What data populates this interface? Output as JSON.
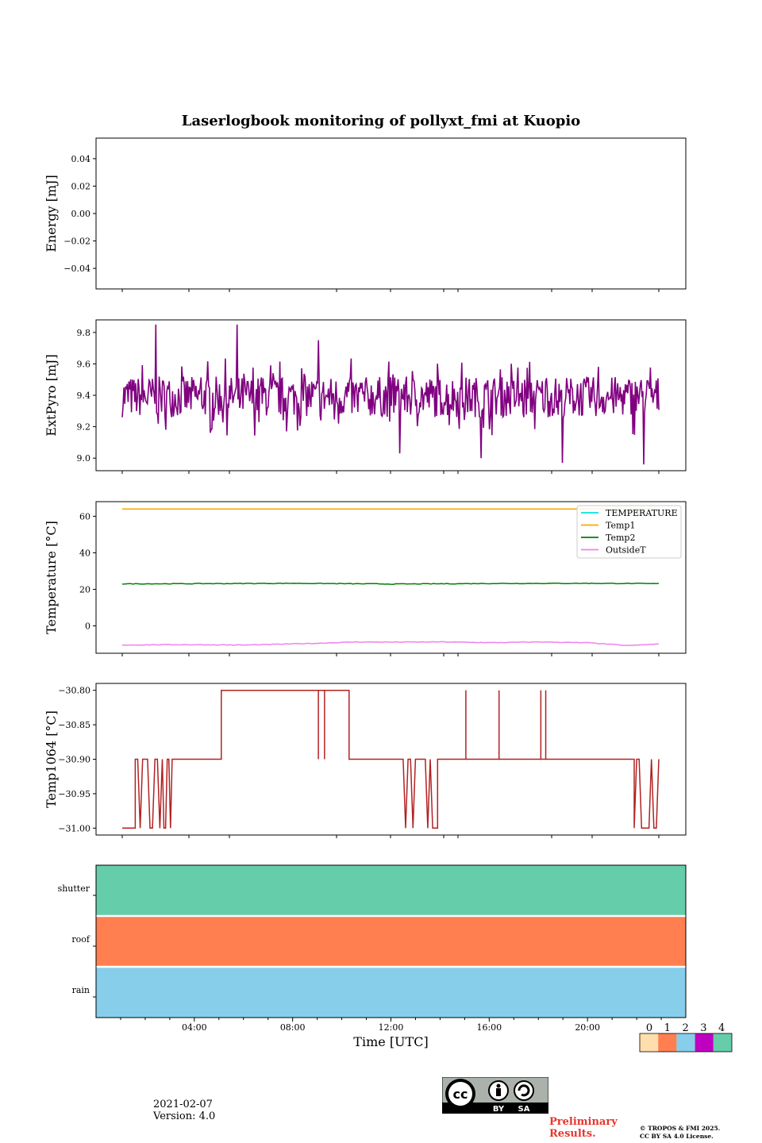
{
  "title": "Laserlogbook monitoring of pollyxt_fmi at Kuopio",
  "chart_data": [
    {
      "type": "line",
      "name": "energy",
      "ylabel": "Energy [mJ]",
      "ylim": [
        -0.055,
        0.055
      ],
      "yticks": [
        0.04,
        0.02,
        0.0,
        -0.02,
        -0.04
      ],
      "yticklabels": [
        "0.04",
        "0.02",
        "0.00",
        "−0.02",
        "−0.04"
      ],
      "series": []
    },
    {
      "type": "line",
      "name": "extpyro",
      "ylabel": "ExtPyro [mJ]",
      "ylim": [
        8.92,
        9.88
      ],
      "yticks": [
        9.8,
        9.6,
        9.4,
        9.2,
        9.0
      ],
      "yticklabels": [
        "9.8",
        "9.6",
        "9.4",
        "9.2",
        "9.0"
      ],
      "series": [
        {
          "name": "ExtPyro",
          "color": "#800080",
          "x_start_h": 0.97,
          "x_end_h": 22.8,
          "mean": 9.39,
          "spread": 0.13,
          "notable_values": [
            9.85,
            9.85,
            9.75,
            9.03,
            9.0,
            8.97,
            8.96,
            8.98
          ]
        }
      ]
    },
    {
      "type": "line",
      "name": "temperature",
      "ylabel": "Temperature [°C]",
      "ylim": [
        -15,
        68
      ],
      "yticks": [
        60,
        40,
        20,
        0
      ],
      "yticklabels": [
        "60",
        "40",
        "20",
        "0"
      ],
      "legend_position": "top-right",
      "series": [
        {
          "name": "TEMPERATURE",
          "color": "#00e5e5",
          "values": []
        },
        {
          "name": "Temp1",
          "color": "#ffa500",
          "x": [
            0.97,
            22.8
          ],
          "values": [
            64,
            64
          ]
        },
        {
          "name": "Temp2",
          "color": "#008000",
          "x": [
            0.97,
            4,
            8,
            12,
            16,
            20,
            22.8
          ],
          "values": [
            23.0,
            23.1,
            23.3,
            22.9,
            23.2,
            23.3,
            23.1
          ]
        },
        {
          "name": "OutsideT",
          "color": "#ee82ee",
          "x": [
            0.97,
            3,
            6,
            9,
            10.5,
            12,
            14,
            16,
            18,
            20,
            21.5,
            22.8
          ],
          "values": [
            -10.5,
            -10.3,
            -10.5,
            -9.5,
            -8.8,
            -8.9,
            -8.8,
            -9.2,
            -8.8,
            -9.3,
            -10.8,
            -10.0
          ]
        }
      ]
    },
    {
      "type": "line",
      "name": "temp1064",
      "ylabel": "Temp1064 [°C]",
      "ylim": [
        -31.01,
        -30.79
      ],
      "yticks": [
        -30.8,
        -30.85,
        -30.9,
        -30.95,
        -31.0
      ],
      "yticklabels": [
        "−30.80",
        "−30.85",
        "−30.90",
        "−30.95",
        "−31.00"
      ],
      "series": [
        {
          "name": "Temp1064",
          "color": "#b22222",
          "segments": [
            {
              "x": [
                0.97,
                1.5
              ],
              "value": -31.0
            },
            {
              "x": [
                1.5,
                2.6
              ],
              "value": -30.9,
              "noisy_to": -31.0
            },
            {
              "x": [
                2.6,
                3.0
              ],
              "value": -31.0,
              "noisy_to": -30.9
            },
            {
              "x": [
                3.0,
                5.0
              ],
              "value": -30.9
            },
            {
              "x": [
                5.0,
                10.2
              ],
              "value": -30.8
            },
            {
              "x": [
                10.2,
                12.3
              ],
              "value": -30.9
            },
            {
              "x": [
                12.3,
                13.8
              ],
              "value": -31.0,
              "noisy_to": -30.9
            },
            {
              "x": [
                13.8,
                21.8
              ],
              "value": -30.9
            },
            {
              "x": [
                21.8,
                22.8
              ],
              "value": -30.9,
              "noisy_to": -31.0
            }
          ]
        }
      ]
    },
    {
      "type": "heatmap",
      "name": "status",
      "xlabel": "Time [UTC]",
      "xticklabels": [
        "04:00",
        "08:00",
        "12:00",
        "16:00",
        "20:00"
      ],
      "xticks_h": [
        4,
        8,
        12,
        16,
        20
      ],
      "xlim_h": [
        0,
        24
      ],
      "rows": [
        {
          "label": "shutter",
          "value": 4
        },
        {
          "label": "roof",
          "value": 1
        },
        {
          "label": "rain",
          "value": 2
        }
      ],
      "colorbar": {
        "ticks": [
          "0",
          "1",
          "2",
          "3",
          "4"
        ],
        "colors": [
          "#ffdead",
          "#ff7f50",
          "#87ceeb",
          "#c000c0",
          "#66cdaa"
        ]
      }
    }
  ],
  "footer": {
    "date": "2021-02-07",
    "version": "Version: 4.0",
    "cc_by": "BY",
    "cc_sa": "SA",
    "cc_mark": "cc",
    "preliminary_line1": "Preliminary",
    "preliminary_line2": "Results.",
    "copyright_line1": "© TROPOS & FMI 2025.",
    "copyright_line2": "CC BY SA 4.0 License."
  }
}
